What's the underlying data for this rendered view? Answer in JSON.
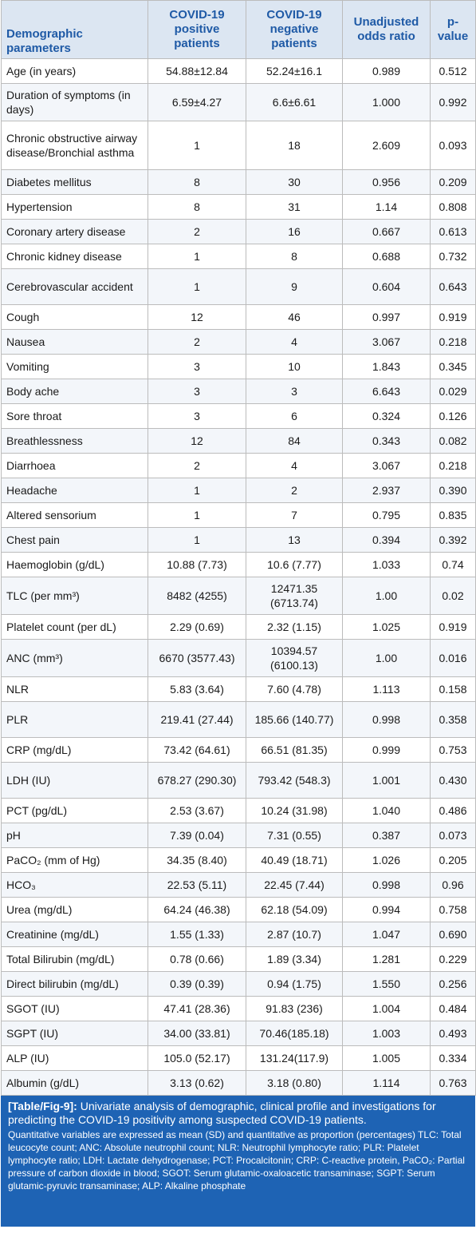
{
  "table": {
    "headers": [
      "Demographic parameters",
      "COVID-19 positive patients",
      "COVID-19 negative patients",
      "Unadjusted odds ratio",
      "p-value"
    ],
    "rows": [
      {
        "param": "Age (in years)",
        "pos": "54.88±12.84",
        "neg": "52.24±16.1",
        "or": "0.989",
        "p": "0.512"
      },
      {
        "param": "Duration of symptoms (in days)",
        "pos": "6.59±4.27",
        "neg": "6.6±6.61",
        "or": "1.000",
        "p": "0.992"
      },
      {
        "param": "Chronic obstructive airway disease/Bronchial asthma",
        "pos": "1",
        "neg": "18",
        "or": "2.609",
        "p": "0.093"
      },
      {
        "param": "Diabetes mellitus",
        "pos": "8",
        "neg": "30",
        "or": "0.956",
        "p": "0.209"
      },
      {
        "param": "Hypertension",
        "pos": "8",
        "neg": "31",
        "or": "1.14",
        "p": "0.808"
      },
      {
        "param": "Coronary artery disease",
        "pos": "2",
        "neg": "16",
        "or": "0.667",
        "p": "0.613"
      },
      {
        "param": "Chronic kidney disease",
        "pos": "1",
        "neg": "8",
        "or": "0.688",
        "p": "0.732"
      },
      {
        "param": "Cerebrovascular accident",
        "pos": "1",
        "neg": "9",
        "or": "0.604",
        "p": "0.643"
      },
      {
        "param": "Cough",
        "pos": "12",
        "neg": "46",
        "or": "0.997",
        "p": "0.919"
      },
      {
        "param": "Nausea",
        "pos": "2",
        "neg": "4",
        "or": "3.067",
        "p": "0.218"
      },
      {
        "param": "Vomiting",
        "pos": "3",
        "neg": "10",
        "or": "1.843",
        "p": "0.345"
      },
      {
        "param": "Body ache",
        "pos": "3",
        "neg": "3",
        "or": "6.643",
        "p": "0.029"
      },
      {
        "param": "Sore throat",
        "pos": "3",
        "neg": "6",
        "or": "0.324",
        "p": "0.126"
      },
      {
        "param": "Breathlessness",
        "pos": "12",
        "neg": "84",
        "or": "0.343",
        "p": "0.082"
      },
      {
        "param": "Diarrhoea",
        "pos": "2",
        "neg": "4",
        "or": "3.067",
        "p": "0.218"
      },
      {
        "param": "Headache",
        "pos": "1",
        "neg": "2",
        "or": "2.937",
        "p": "0.390"
      },
      {
        "param": "Altered sensorium",
        "pos": "1",
        "neg": "7",
        "or": "0.795",
        "p": "0.835"
      },
      {
        "param": "Chest pain",
        "pos": "1",
        "neg": "13",
        "or": "0.394",
        "p": "0.392"
      },
      {
        "param": "Haemoglobin (g/dL)",
        "pos": "10.88 (7.73)",
        "neg": "10.6 (7.77)",
        "or": "1.033",
        "p": "0.74"
      },
      {
        "param": "TLC (per mm³)",
        "pos": "8482 (4255)",
        "neg": "12471.35 (6713.74)",
        "or": "1.00",
        "p": "0.02"
      },
      {
        "param": "Platelet count (per dL)",
        "pos": "2.29 (0.69)",
        "neg": "2.32 (1.15)",
        "or": "1.025",
        "p": "0.919"
      },
      {
        "param": "ANC (mm³)",
        "pos": "6670 (3577.43)",
        "neg": "10394.57 (6100.13)",
        "or": "1.00",
        "p": "0.016"
      },
      {
        "param": "NLR",
        "pos": "5.83 (3.64)",
        "neg": "7.60 (4.78)",
        "or": "1.113",
        "p": "0.158"
      },
      {
        "param": "PLR",
        "pos": "219.41 (27.44)",
        "neg": "185.66 (140.77)",
        "or": "0.998",
        "p": "0.358"
      },
      {
        "param": "CRP (mg/dL)",
        "pos": "73.42 (64.61)",
        "neg": "66.51 (81.35)",
        "or": "0.999",
        "p": "0.753"
      },
      {
        "param": "LDH (IU)",
        "pos": "678.27 (290.30)",
        "neg": "793.42 (548.3)",
        "or": "1.001",
        "p": "0.430"
      },
      {
        "param": "PCT (pg/dL)",
        "pos": "2.53 (3.67)",
        "neg": "10.24 (31.98)",
        "or": "1.040",
        "p": "0.486"
      },
      {
        "param": "pH",
        "pos": "7.39 (0.04)",
        "neg": "7.31 (0.55)",
        "or": "0.387",
        "p": "0.073"
      },
      {
        "param": "PaCO₂ (mm of Hg)",
        "pos": "34.35 (8.40)",
        "neg": "40.49 (18.71)",
        "or": "1.026",
        "p": "0.205"
      },
      {
        "param": "HCO₃",
        "pos": "22.53 (5.11)",
        "neg": "22.45 (7.44)",
        "or": "0.998",
        "p": "0.96"
      },
      {
        "param": "Urea (mg/dL)",
        "pos": "64.24 (46.38)",
        "neg": "62.18 (54.09)",
        "or": "0.994",
        "p": "0.758"
      },
      {
        "param": "Creatinine (mg/dL)",
        "pos": "1.55 (1.33)",
        "neg": "2.87 (10.7)",
        "or": "1.047",
        "p": "0.690"
      },
      {
        "param": "Total Bilirubin (mg/dL)",
        "pos": "0.78 (0.66)",
        "neg": "1.89 (3.34)",
        "or": "1.281",
        "p": "0.229"
      },
      {
        "param": "Direct bilirubin (mg/dL)",
        "pos": "0.39 (0.39)",
        "neg": "0.94 (1.75)",
        "or": "1.550",
        "p": "0.256"
      },
      {
        "param": "SGOT (IU)",
        "pos": "47.41 (28.36)",
        "neg": "91.83 (236)",
        "or": "1.004",
        "p": "0.484"
      },
      {
        "param": "SGPT (IU)",
        "pos": "34.00 (33.81)",
        "neg": "70.46(185.18)",
        "or": "1.003",
        "p": "0.493"
      },
      {
        "param": "ALP (IU)",
        "pos": "105.0 (52.17)",
        "neg": "131.24(117.9)",
        "or": "1.005",
        "p": "0.334"
      },
      {
        "param": "Albumin (g/dL)",
        "pos": "3.13 (0.62)",
        "neg": "3.18 (0.80)",
        "or": "1.114",
        "p": "0.763"
      }
    ]
  },
  "caption": {
    "label": "[Table/Fig-9]:",
    "title": " Univariate analysis of demographic, clinical profile and investigations for predicting the COVID-19 positivity among suspected COVID-19 patients.",
    "notes": "Quantitative variables are expressed as mean (SD) and quantitative as proportion (percentages) TLC: Total leucocyte count; ANC: Absolute neutrophil count; NLR: Neutrophil lymphocyte ratio; PLR: Platelet lymphocyte ratio; LDH: Lactate dehydrogenase; PCT: Procalcitonin; CRP: C-reactive protein, PaCO₂: Partial pressure of carbon dioxide in blood; SGOT: Serum glutamic-oxaloacetic transaminase; SGPT: Serum glutamic-pyruvic transaminase; ALP: Alkaline phosphate"
  },
  "colors": {
    "header_text": "#1f5aa6",
    "header_bg": "#dce6f2",
    "caption_bg": "#1e63b4",
    "caption_text": "#ffffff"
  }
}
